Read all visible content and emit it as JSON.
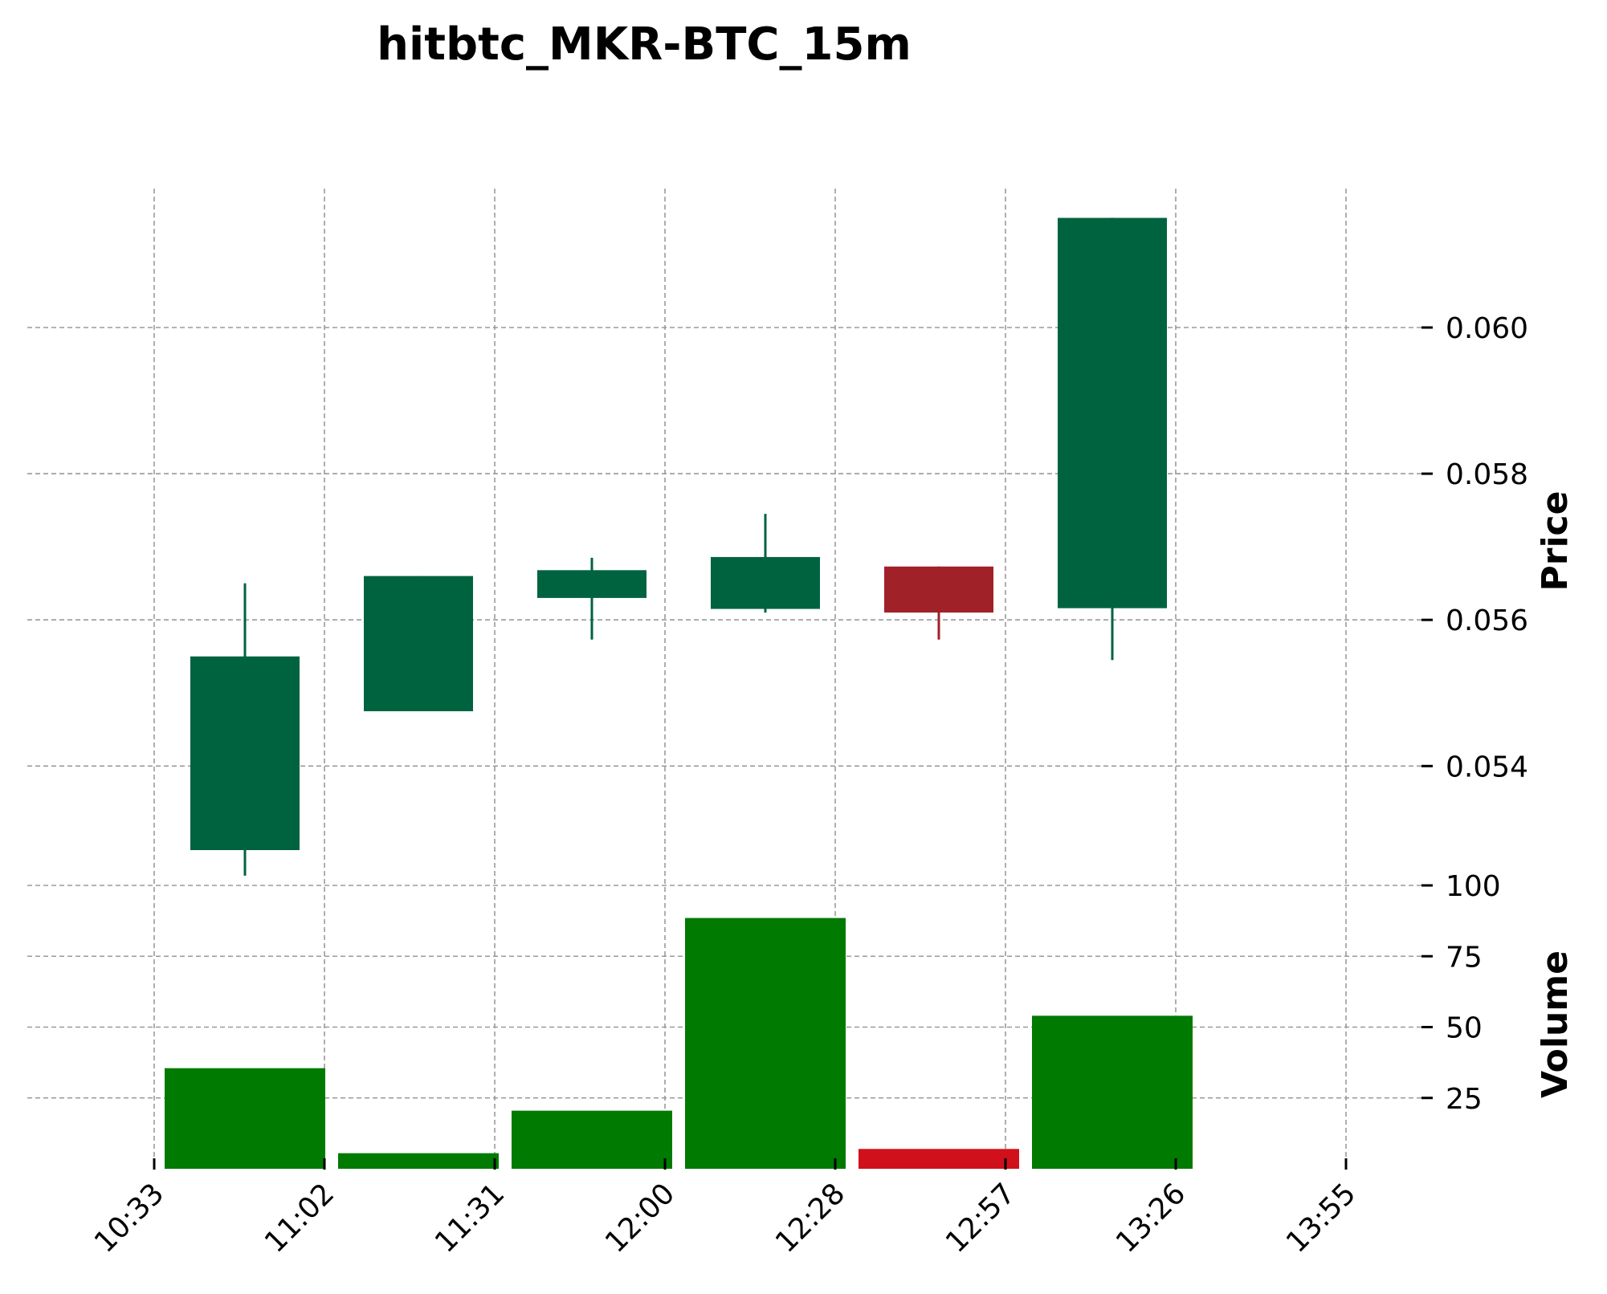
{
  "chart_data": {
    "type": "candlestick",
    "title": "hitbtc_MKR-BTC_15m",
    "x_tick_labels": [
      "10:33",
      "11:02",
      "11:31",
      "12:00",
      "12:28",
      "12:57",
      "13:26",
      "13:55"
    ],
    "price_panel": {
      "ylabel": "Price",
      "ylim": [
        0.0524,
        0.0619
      ],
      "yticks": [
        0.054,
        0.056,
        0.058,
        0.06
      ],
      "ytick_labels": [
        "0.054",
        "0.056",
        "0.058",
        "0.060"
      ]
    },
    "volume_panel": {
      "ylabel": "Volume",
      "ylim": [
        0,
        100
      ],
      "yticks": [
        25,
        50,
        75,
        100
      ],
      "ytick_labels": [
        "25",
        "50",
        "75",
        "100"
      ]
    },
    "candles": [
      {
        "index": 0,
        "open": 0.05285,
        "high": 0.0565,
        "low": 0.0525,
        "close": 0.0555,
        "volume": 35.5,
        "direction": "up"
      },
      {
        "index": 1,
        "open": 0.05475,
        "high": 0.0566,
        "low": 0.05475,
        "close": 0.0566,
        "volume": 5.5,
        "direction": "up"
      },
      {
        "index": 2,
        "open": 0.0563,
        "high": 0.05685,
        "low": 0.05573,
        "close": 0.05668,
        "volume": 20.5,
        "direction": "up"
      },
      {
        "index": 3,
        "open": 0.05615,
        "high": 0.05745,
        "low": 0.0561,
        "close": 0.05686,
        "volume": 88.5,
        "direction": "up"
      },
      {
        "index": 4,
        "open": 0.05673,
        "high": 0.05673,
        "low": 0.05573,
        "close": 0.0561,
        "volume": 7,
        "direction": "down"
      },
      {
        "index": 5,
        "open": 0.05616,
        "high": 0.0615,
        "low": 0.05545,
        "close": 0.0615,
        "volume": 54,
        "direction": "up"
      }
    ],
    "colors": {
      "up_candle": "#006340",
      "down_candle": "#a02128",
      "up_volume": "#007a00",
      "down_volume": "#d0101a",
      "grid": "#9a9a9a"
    }
  }
}
